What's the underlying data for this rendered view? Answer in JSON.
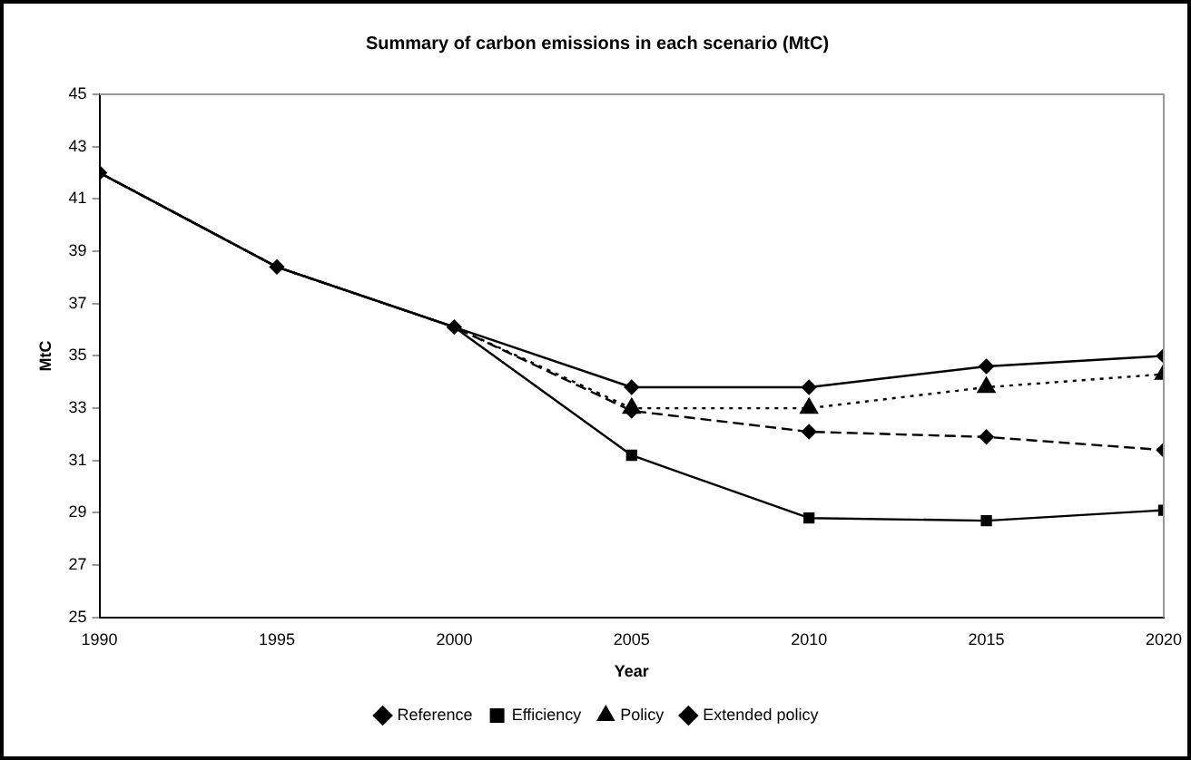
{
  "chart_data": {
    "type": "line",
    "title": "Summary of carbon emissions in each scenario (MtC)",
    "xlabel": "Year",
    "ylabel": "MtC",
    "x": [
      1990,
      1995,
      2000,
      2005,
      2010,
      2015,
      2020
    ],
    "xlim": [
      1990,
      2020
    ],
    "xticks": [
      1990,
      1995,
      2000,
      2005,
      2010,
      2015,
      2020
    ],
    "ylim": [
      25,
      45
    ],
    "yticks": [
      25,
      27,
      29,
      31,
      33,
      35,
      37,
      39,
      41,
      43,
      45
    ],
    "grid": false,
    "legend": "bottom",
    "series": [
      {
        "name": "Reference",
        "color": "#000000",
        "marker": "diamond",
        "line_style": "solid",
        "values": [
          42,
          38.4,
          36.1,
          33.8,
          33.8,
          34.6,
          35.0
        ]
      },
      {
        "name": "Efficiency",
        "color": "#000000",
        "marker": "square",
        "line_style": "solid",
        "values": [
          42,
          38.4,
          36.1,
          31.2,
          28.8,
          28.7,
          29.1
        ]
      },
      {
        "name": "Policy",
        "color": "#000000",
        "marker": "triangle",
        "line_style": "dotted",
        "values": [
          42,
          38.4,
          36.1,
          33.0,
          33.0,
          33.8,
          34.3
        ]
      },
      {
        "name": "Extended policy",
        "color": "#000000",
        "marker": "diamond",
        "line_style": "dashed",
        "values": [
          42,
          38.4,
          36.1,
          32.9,
          32.1,
          31.9,
          31.4
        ]
      }
    ]
  }
}
